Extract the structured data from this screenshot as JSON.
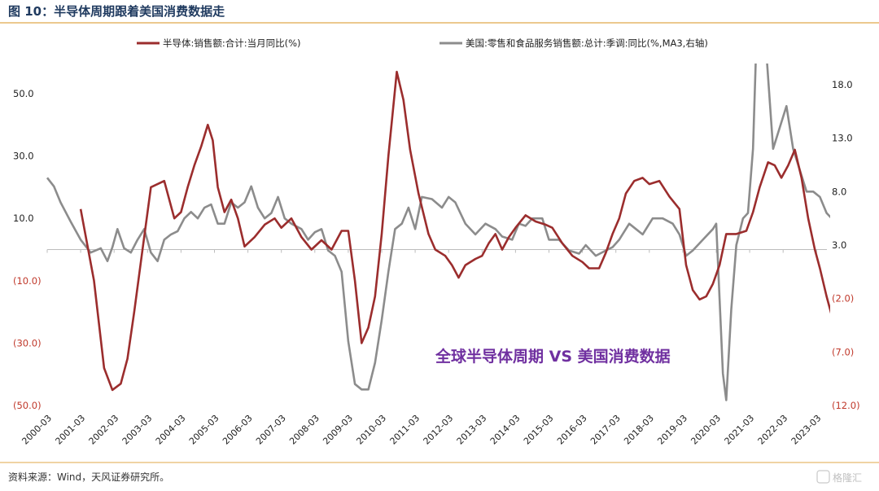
{
  "title": "图 10：半导体周期跟着美国消费数据走",
  "annotation": "全球半导体周期 VS 美国消费数据",
  "source": "资料来源：Wind，天风证券研究所。",
  "watermark": "格隆汇",
  "colors": {
    "series1": "#9b2d2d",
    "series2": "#8c8c8c",
    "title": "#1f3a5f",
    "annotation": "#7030a0",
    "rule": "#e0a94a",
    "neg": "#c0392b"
  },
  "chart_data": {
    "type": "line",
    "left_axis": {
      "min": -50,
      "max": 60,
      "ticks": [
        50,
        30,
        10,
        -10,
        -30,
        -50
      ],
      "tick_labels": [
        "50.0",
        "30.0",
        "10.0",
        "(10.0)",
        "(30.0)",
        "(50.0)"
      ]
    },
    "right_axis": {
      "min": -12,
      "max": 21,
      "ticks": [
        18,
        13,
        8,
        3,
        -2,
        -7,
        -12
      ],
      "tick_labels": [
        "18.0",
        "13.0",
        "8.0",
        "3.0",
        "(2.0)",
        "(7.0)",
        "(12.0)"
      ]
    },
    "x_labels": [
      "2000-03",
      "2001-03",
      "2002-03",
      "2003-03",
      "2004-03",
      "2005-03",
      "2006-03",
      "2007-03",
      "2008-03",
      "2009-03",
      "2010-03",
      "2011-03",
      "2012-03",
      "2013-03",
      "2014-03",
      "2015-03",
      "2016-03",
      "2017-03",
      "2018-03",
      "2019-03",
      "2020-03",
      "2021-03",
      "2022-03",
      "2023-03"
    ],
    "series": [
      {
        "name": "半导体:销售额:合计:当月同比(%)",
        "axis": "left",
        "points": [
          [
            2001.0,
            13
          ],
          [
            2001.4,
            -10
          ],
          [
            2001.7,
            -38
          ],
          [
            2001.95,
            -45
          ],
          [
            2002.2,
            -43
          ],
          [
            2002.4,
            -35
          ],
          [
            2002.6,
            -20
          ],
          [
            2002.85,
            0
          ],
          [
            2003.1,
            20
          ],
          [
            2003.3,
            21
          ],
          [
            2003.5,
            22
          ],
          [
            2003.8,
            10
          ],
          [
            2004.0,
            12
          ],
          [
            2004.2,
            20
          ],
          [
            2004.4,
            27
          ],
          [
            2004.6,
            33
          ],
          [
            2004.8,
            40
          ],
          [
            2004.95,
            35
          ],
          [
            2005.1,
            20
          ],
          [
            2005.3,
            12
          ],
          [
            2005.5,
            16
          ],
          [
            2005.7,
            10
          ],
          [
            2005.9,
            1
          ],
          [
            2006.2,
            4
          ],
          [
            2006.5,
            8
          ],
          [
            2006.8,
            10
          ],
          [
            2007.0,
            7
          ],
          [
            2007.3,
            10
          ],
          [
            2007.6,
            4
          ],
          [
            2007.9,
            0
          ],
          [
            2008.2,
            3
          ],
          [
            2008.5,
            0
          ],
          [
            2008.8,
            6
          ],
          [
            2009.0,
            6
          ],
          [
            2009.2,
            -10
          ],
          [
            2009.4,
            -30
          ],
          [
            2009.6,
            -25
          ],
          [
            2009.8,
            -15
          ],
          [
            2010.0,
            5
          ],
          [
            2010.2,
            30
          ],
          [
            2010.45,
            57
          ],
          [
            2010.65,
            48
          ],
          [
            2010.85,
            32
          ],
          [
            2011.1,
            18
          ],
          [
            2011.4,
            5
          ],
          [
            2011.6,
            0
          ],
          [
            2011.9,
            -2
          ],
          [
            2012.1,
            -5
          ],
          [
            2012.3,
            -9
          ],
          [
            2012.5,
            -5
          ],
          [
            2012.8,
            -3
          ],
          [
            2013.0,
            -2
          ],
          [
            2013.2,
            2
          ],
          [
            2013.4,
            5
          ],
          [
            2013.6,
            0
          ],
          [
            2013.8,
            4
          ],
          [
            2014.0,
            7
          ],
          [
            2014.3,
            11
          ],
          [
            2014.6,
            9
          ],
          [
            2014.9,
            8
          ],
          [
            2015.1,
            7
          ],
          [
            2015.4,
            2
          ],
          [
            2015.7,
            -2
          ],
          [
            2016.0,
            -4
          ],
          [
            2016.2,
            -6
          ],
          [
            2016.5,
            -6
          ],
          [
            2016.7,
            -1
          ],
          [
            2016.9,
            5
          ],
          [
            2017.1,
            10
          ],
          [
            2017.3,
            18
          ],
          [
            2017.55,
            22
          ],
          [
            2017.8,
            23
          ],
          [
            2018.0,
            21
          ],
          [
            2018.3,
            22
          ],
          [
            2018.6,
            17
          ],
          [
            2018.9,
            13
          ],
          [
            2019.1,
            -5
          ],
          [
            2019.3,
            -13
          ],
          [
            2019.5,
            -16
          ],
          [
            2019.7,
            -15
          ],
          [
            2019.9,
            -11
          ],
          [
            2020.1,
            -5
          ],
          [
            2020.3,
            5
          ],
          [
            2020.6,
            5
          ],
          [
            2020.9,
            6
          ],
          [
            2021.1,
            12
          ],
          [
            2021.3,
            20
          ],
          [
            2021.55,
            28
          ],
          [
            2021.75,
            27
          ],
          [
            2021.95,
            23
          ],
          [
            2022.15,
            27
          ],
          [
            2022.35,
            32
          ],
          [
            2022.55,
            23
          ],
          [
            2022.75,
            10
          ],
          [
            2022.95,
            0
          ],
          [
            2023.1,
            -6
          ],
          [
            2023.3,
            -15
          ],
          [
            2023.45,
            -21
          ]
        ]
      },
      {
        "name": "美国:零售和食品服务销售额:总计:季调:同比(%,MA3,右轴)",
        "axis": "right",
        "points": [
          [
            2000.0,
            9.3
          ],
          [
            2000.2,
            8.5
          ],
          [
            2000.4,
            7.0
          ],
          [
            2000.7,
            5.2
          ],
          [
            2001.0,
            3.5
          ],
          [
            2001.3,
            2.3
          ],
          [
            2001.6,
            2.7
          ],
          [
            2001.8,
            1.5
          ],
          [
            2001.95,
            2.8
          ],
          [
            2002.1,
            4.5
          ],
          [
            2002.3,
            2.7
          ],
          [
            2002.5,
            2.3
          ],
          [
            2002.7,
            3.5
          ],
          [
            2002.9,
            4.5
          ],
          [
            2003.1,
            2.3
          ],
          [
            2003.3,
            1.5
          ],
          [
            2003.5,
            3.5
          ],
          [
            2003.7,
            4.0
          ],
          [
            2003.9,
            4.3
          ],
          [
            2004.1,
            5.5
          ],
          [
            2004.3,
            6.1
          ],
          [
            2004.5,
            5.5
          ],
          [
            2004.7,
            6.5
          ],
          [
            2004.9,
            6.8
          ],
          [
            2005.1,
            5.0
          ],
          [
            2005.3,
            5.0
          ],
          [
            2005.5,
            7.0
          ],
          [
            2005.7,
            6.5
          ],
          [
            2005.9,
            7.0
          ],
          [
            2006.1,
            8.5
          ],
          [
            2006.3,
            6.5
          ],
          [
            2006.5,
            5.5
          ],
          [
            2006.7,
            6.0
          ],
          [
            2006.9,
            7.5
          ],
          [
            2007.1,
            5.5
          ],
          [
            2007.3,
            5.0
          ],
          [
            2007.6,
            4.5
          ],
          [
            2007.8,
            3.5
          ],
          [
            2008.0,
            4.2
          ],
          [
            2008.2,
            4.5
          ],
          [
            2008.4,
            2.5
          ],
          [
            2008.6,
            2.0
          ],
          [
            2008.8,
            0.5
          ],
          [
            2009.0,
            -6
          ],
          [
            2009.2,
            -10
          ],
          [
            2009.4,
            -10.5
          ],
          [
            2009.6,
            -10.5
          ],
          [
            2009.8,
            -8
          ],
          [
            2010.0,
            -4
          ],
          [
            2010.2,
            0.5
          ],
          [
            2010.4,
            4.5
          ],
          [
            2010.6,
            5
          ],
          [
            2010.8,
            6.5
          ],
          [
            2011.0,
            4.5
          ],
          [
            2011.2,
            7.5
          ],
          [
            2011.5,
            7.3
          ],
          [
            2011.8,
            6.5
          ],
          [
            2012.0,
            7.5
          ],
          [
            2012.2,
            7.0
          ],
          [
            2012.5,
            5.0
          ],
          [
            2012.8,
            4.0
          ],
          [
            2013.1,
            5.0
          ],
          [
            2013.4,
            4.5
          ],
          [
            2013.6,
            3.8
          ],
          [
            2013.9,
            3.5
          ],
          [
            2014.1,
            5.0
          ],
          [
            2014.3,
            4.8
          ],
          [
            2014.5,
            5.5
          ],
          [
            2014.8,
            5.5
          ],
          [
            2015.0,
            3.5
          ],
          [
            2015.3,
            3.5
          ],
          [
            2015.6,
            2.5
          ],
          [
            2015.9,
            2.2
          ],
          [
            2016.1,
            3.0
          ],
          [
            2016.4,
            2.0
          ],
          [
            2016.7,
            2.5
          ],
          [
            2016.9,
            2.8
          ],
          [
            2017.1,
            3.5
          ],
          [
            2017.4,
            5.0
          ],
          [
            2017.6,
            4.5
          ],
          [
            2017.8,
            4.0
          ],
          [
            2018.1,
            5.5
          ],
          [
            2018.4,
            5.5
          ],
          [
            2018.7,
            5.0
          ],
          [
            2018.9,
            4.0
          ],
          [
            2019.1,
            2.0
          ],
          [
            2019.3,
            2.5
          ],
          [
            2019.6,
            3.5
          ],
          [
            2019.9,
            4.5
          ],
          [
            2020.0,
            5.0
          ],
          [
            2020.1,
            -2
          ],
          [
            2020.2,
            -9
          ],
          [
            2020.3,
            -11.5
          ],
          [
            2020.45,
            -3
          ],
          [
            2020.6,
            3
          ],
          [
            2020.8,
            5.5
          ],
          [
            2020.95,
            6
          ],
          [
            2021.1,
            12
          ],
          [
            2021.2,
            22
          ],
          [
            2021.3,
            30
          ],
          [
            2021.5,
            21
          ],
          [
            2021.7,
            12
          ],
          [
            2021.9,
            14
          ],
          [
            2022.1,
            16
          ],
          [
            2022.3,
            12
          ],
          [
            2022.5,
            10
          ],
          [
            2022.7,
            8
          ],
          [
            2022.9,
            8
          ],
          [
            2023.1,
            7.5
          ],
          [
            2023.3,
            6
          ],
          [
            2023.45,
            5.5
          ]
        ]
      }
    ]
  }
}
